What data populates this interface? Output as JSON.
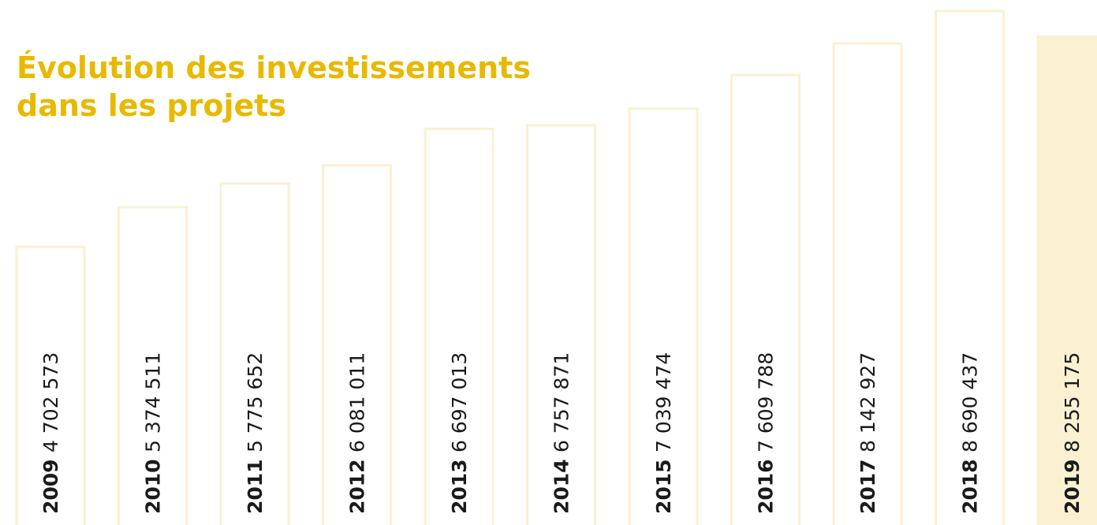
{
  "chart_data": {
    "type": "bar",
    "title": [
      "Évolution des investissements",
      "dans les projets"
    ],
    "categories": [
      "2009",
      "2010",
      "2011",
      "2012",
      "2013",
      "2014",
      "2015",
      "2016",
      "2017",
      "2018",
      "2019"
    ],
    "values": [
      4702573,
      5374511,
      5775652,
      6081011,
      6697013,
      6757871,
      7039474,
      7609788,
      8142927,
      8690437,
      8255175
    ],
    "value_labels": [
      "4 702 573",
      "5 374 511",
      "5 775 652",
      "6 081 011",
      "6 697 013",
      "6 757 871",
      "7 039 474",
      "7 609 788",
      "8 142 927",
      "8 690 437",
      "8 255 175"
    ],
    "color": "#fcf0d2",
    "title_color": "#e8b900",
    "highlight_category": "2019"
  }
}
